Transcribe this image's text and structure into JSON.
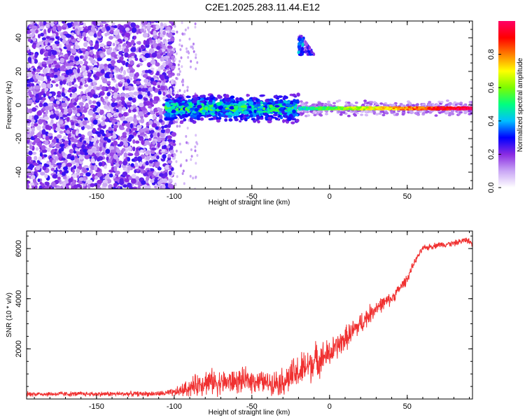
{
  "title": "C2E1.2025.283.11.44.E12",
  "chart_data": [
    {
      "type": "heatmap",
      "name": "spectrogram",
      "xlabel": "Height of straight line (km)",
      "ylabel": "Frequency (Hz)",
      "xlim": [
        -195,
        92
      ],
      "ylim": [
        -50,
        50
      ],
      "x_ticks": [
        -150,
        -100,
        -50,
        0,
        50
      ],
      "x_tick_labels": [
        "-150",
        "-100",
        "-50",
        "0",
        "50"
      ],
      "y_ticks": [
        -40,
        -20,
        0,
        20,
        40
      ],
      "y_tick_labels": [
        "-40",
        "-20",
        "0",
        "20",
        "40"
      ],
      "colorbar": {
        "label": "Normalized spectral amplitude",
        "range": [
          0,
          1
        ],
        "ticks": [
          0.0,
          0.2,
          0.4,
          0.6,
          0.8
        ],
        "tick_labels": [
          "0.0",
          "0.2",
          "0.4",
          "0.6",
          "0.8"
        ],
        "colors": [
          "#ffffff",
          "#c9a6f5",
          "#8a2be2",
          "#0000ff",
          "#00bfff",
          "#00ff7f",
          "#7cfc00",
          "#ffff00",
          "#ff7f00",
          "#ff0000",
          "#ff0066"
        ]
      },
      "features": {
        "noise_region_km": [
          -195,
          -100
        ],
        "signal_center_hz": -2,
        "signal_start_km": -105,
        "strong_signal_start_km": -20,
        "harmonic_streak": {
          "x_km": [
            -20,
            -10
          ],
          "y_hz": [
            30,
            45
          ]
        }
      }
    },
    {
      "type": "line",
      "name": "snr",
      "xlabel": "Height of straight line (km)",
      "ylabel": "SNR (10 * v/v)",
      "xlim": [
        -195,
        92
      ],
      "ylim": [
        0,
        6700
      ],
      "x_ticks": [
        -150,
        -100,
        -50,
        0,
        50
      ],
      "x_tick_labels": [
        "-150",
        "-100",
        "-50",
        "0",
        "50"
      ],
      "y_ticks": [
        2000,
        4000,
        6000
      ],
      "y_tick_labels": [
        "2000",
        "4000",
        "6000"
      ],
      "line_color": "#f03030",
      "series": [
        {
          "name": "SNR",
          "x": [
            -195,
            -150,
            -110,
            -100,
            -90,
            -80,
            -70,
            -60,
            -50,
            -40,
            -30,
            -20,
            -10,
            0,
            10,
            20,
            30,
            40,
            50,
            55,
            60,
            70,
            80,
            88,
            92
          ],
          "y": [
            200,
            200,
            210,
            250,
            450,
            700,
            650,
            700,
            750,
            650,
            700,
            1050,
            1500,
            1800,
            2400,
            3000,
            3650,
            4000,
            4800,
            5500,
            6000,
            6150,
            6200,
            6350,
            6200
          ],
          "noise_amp": [
            120,
            120,
            130,
            200,
            450,
            650,
            600,
            600,
            600,
            500,
            700,
            900,
            900,
            700,
            600,
            550,
            400,
            300,
            250,
            150,
            150,
            150,
            150,
            150,
            150
          ]
        }
      ]
    }
  ]
}
